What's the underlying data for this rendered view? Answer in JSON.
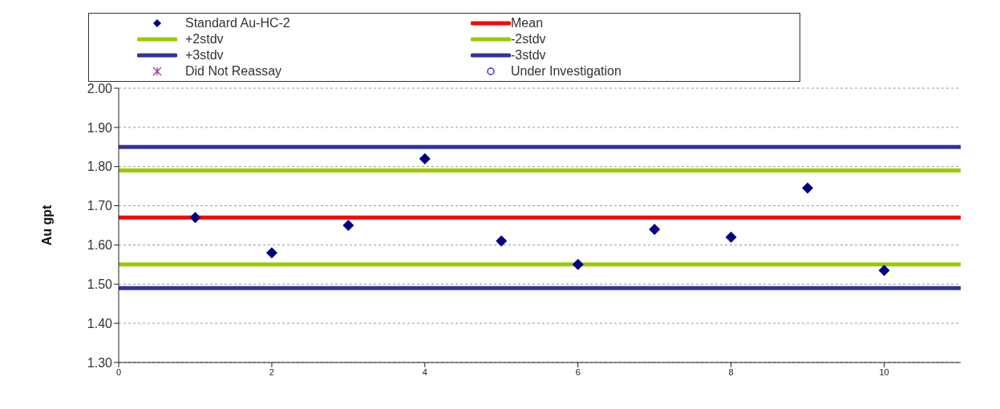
{
  "chart_data": {
    "type": "scatter",
    "ylabel": "Au gpt",
    "x": [
      1,
      2,
      3,
      4,
      5,
      6,
      7,
      8,
      9,
      10
    ],
    "xlim": [
      0,
      11
    ],
    "xticks": [
      0,
      2,
      4,
      6,
      8,
      10
    ],
    "ylim": [
      1.3,
      2.0
    ],
    "yticks": [
      {
        "value": 1.3,
        "label": "1.30"
      },
      {
        "value": 1.4,
        "label": "1.40"
      },
      {
        "value": 1.5,
        "label": "1.50"
      },
      {
        "value": 1.6,
        "label": "1.60"
      },
      {
        "value": 1.7,
        "label": "1.70"
      },
      {
        "value": 1.8,
        "label": "1.80"
      },
      {
        "value": 1.9,
        "label": "1.90"
      },
      {
        "value": 2.0,
        "label": "2.00"
      }
    ],
    "grid": "y",
    "legend": "top",
    "series": [
      {
        "name": "Standard Au-HC-2",
        "color": "#000080",
        "type": "scatter",
        "marker": "diamond",
        "values": [
          1.67,
          1.58,
          1.65,
          1.82,
          1.61,
          1.55,
          1.64,
          1.62,
          1.745,
          1.535
        ]
      },
      {
        "name": "Did Not Reassay",
        "color": "#993399",
        "type": "scatter",
        "marker": "star",
        "values": [
          null,
          null,
          null,
          null,
          null,
          null,
          null,
          null,
          null,
          null
        ]
      },
      {
        "name": "Under Investigation",
        "color": "#3333cc",
        "type": "scatter",
        "marker": "circle",
        "values": [
          null,
          null,
          null,
          null,
          null,
          null,
          null,
          null,
          null,
          null
        ]
      }
    ],
    "ref_lines": [
      {
        "axis": "y",
        "value": 1.67,
        "label": "Mean",
        "color": "#ff0000",
        "line_style": "solid"
      },
      {
        "axis": "y",
        "value": 1.79,
        "label": "+2stdv",
        "color": "#99cc00",
        "line_style": "solid"
      },
      {
        "axis": "y",
        "value": 1.55,
        "label": "-2stdv",
        "color": "#99cc00",
        "line_style": "solid"
      },
      {
        "axis": "y",
        "value": 1.85,
        "label": "+3stdv",
        "color": "#333399",
        "line_style": "solid"
      },
      {
        "axis": "y",
        "value": 1.49,
        "label": "-3stdv",
        "color": "#333399",
        "line_style": "solid"
      }
    ]
  }
}
